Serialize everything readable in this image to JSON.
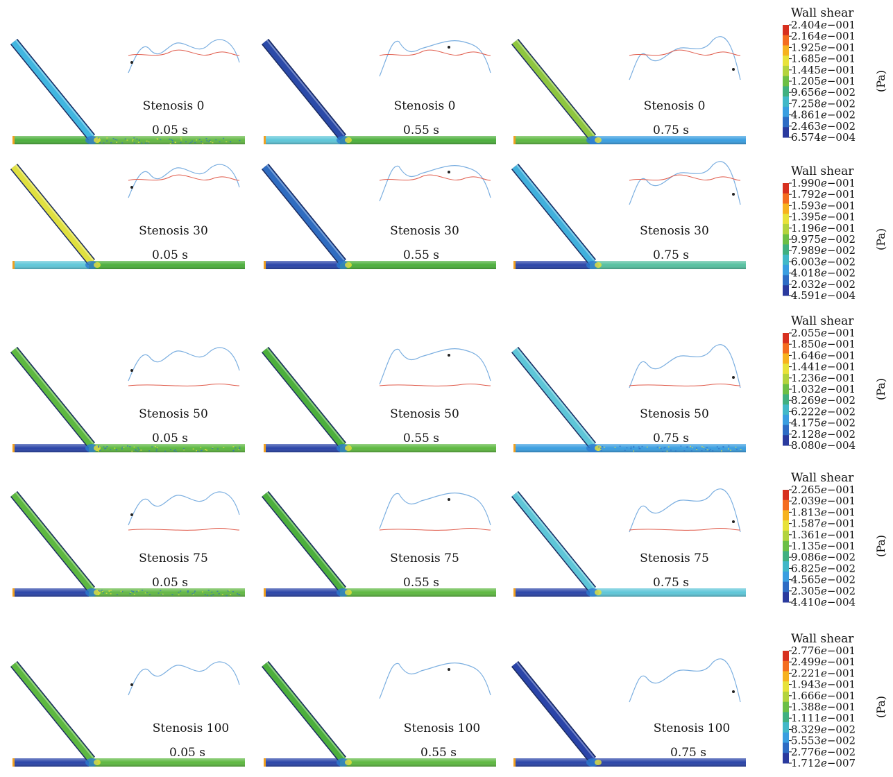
{
  "rows": [
    {
      "stenosis": "Stenosis 0",
      "colorbar": {
        "title": "Wall shear",
        "unit": "(Pa)",
        "ticks": [
          {
            "m": "2.404",
            "x": "−001"
          },
          {
            "m": "2.164",
            "x": "−001"
          },
          {
            "m": "1.925",
            "x": "−001"
          },
          {
            "m": "1.685",
            "x": "−001"
          },
          {
            "m": "1.445",
            "x": "−001"
          },
          {
            "m": "1.205",
            "x": "−001"
          },
          {
            "m": "9.656",
            "x": "−002"
          },
          {
            "m": "7.258",
            "x": "−002"
          },
          {
            "m": "4.861",
            "x": "−002"
          },
          {
            "m": "2.463",
            "x": "−002"
          },
          {
            "m": "6.574",
            "x": "−004"
          }
        ]
      },
      "panels": [
        {
          "time": "0.05 s",
          "branch": "#41b6e0",
          "left": "#4caf3c",
          "right": "#63b845",
          "speckle": true
        },
        {
          "time": "0.55 s",
          "branch": "#2b4aa8",
          "left": "#5ec6d8",
          "right": "#4caf3c",
          "speckle": false
        },
        {
          "time": "0.75 s",
          "branch": "#8ec63f",
          "left": "#5db840",
          "right": "#3a9ee0",
          "speckle": false
        }
      ]
    },
    {
      "stenosis": "Stenosis 30",
      "colorbar": {
        "title": "Wall shear",
        "unit": "(Pa)",
        "ticks": [
          {
            "m": "1.990",
            "x": "−001"
          },
          {
            "m": "1.792",
            "x": "−001"
          },
          {
            "m": "1.593",
            "x": "−001"
          },
          {
            "m": "1.395",
            "x": "−001"
          },
          {
            "m": "1.196",
            "x": "−001"
          },
          {
            "m": "9.975",
            "x": "−002"
          },
          {
            "m": "7.989",
            "x": "−002"
          },
          {
            "m": "6.003",
            "x": "−002"
          },
          {
            "m": "4.018",
            "x": "−002"
          },
          {
            "m": "2.032",
            "x": "−002"
          },
          {
            "m": "4.591",
            "x": "−004"
          }
        ]
      },
      "panels": [
        {
          "time": "0.05 s",
          "branch": "#e0e040",
          "left": "#5ec6d8",
          "right": "#4caf3c",
          "speckle": false
        },
        {
          "time": "0.55 s",
          "branch": "#2f6cc0",
          "left": "#2a44a8",
          "right": "#4caf3c",
          "speckle": false
        },
        {
          "time": "0.75 s",
          "branch": "#41b0dc",
          "left": "#2a44a8",
          "right": "#55c0a0",
          "speckle": false
        }
      ]
    },
    {
      "stenosis": "Stenosis 50",
      "colorbar": {
        "title": "Wall shear",
        "unit": "(Pa)",
        "ticks": [
          {
            "m": "2.055",
            "x": "−001"
          },
          {
            "m": "1.850",
            "x": "−001"
          },
          {
            "m": "1.646",
            "x": "−001"
          },
          {
            "m": "1.441",
            "x": "−001"
          },
          {
            "m": "1.236",
            "x": "−001"
          },
          {
            "m": "1.032",
            "x": "−001"
          },
          {
            "m": "8.269",
            "x": "−002"
          },
          {
            "m": "6.222",
            "x": "−002"
          },
          {
            "m": "4.175",
            "x": "−002"
          },
          {
            "m": "2.128",
            "x": "−002"
          },
          {
            "m": "8.080",
            "x": "−004"
          }
        ]
      },
      "panels": [
        {
          "time": "0.05 s",
          "branch": "#5db840",
          "left": "#2a44a8",
          "right": "#5db840",
          "speckle": true
        },
        {
          "time": "0.55 s",
          "branch": "#4caf3c",
          "left": "#2a44a8",
          "right": "#5db840",
          "speckle": false
        },
        {
          "time": "0.75 s",
          "branch": "#5ec6d8",
          "left": "#3a9ee0",
          "right": "#3a9ee0",
          "speckle": true
        }
      ]
    },
    {
      "stenosis": "Stenosis 75",
      "colorbar": {
        "title": "Wall shear",
        "unit": "(Pa)",
        "ticks": [
          {
            "m": "2.265",
            "x": "−001"
          },
          {
            "m": "2.039",
            "x": "−001"
          },
          {
            "m": "1.813",
            "x": "−001"
          },
          {
            "m": "1.587",
            "x": "−001"
          },
          {
            "m": "1.361",
            "x": "−001"
          },
          {
            "m": "1.135",
            "x": "−001"
          },
          {
            "m": "9.086",
            "x": "−002"
          },
          {
            "m": "6.825",
            "x": "−002"
          },
          {
            "m": "4.565",
            "x": "−002"
          },
          {
            "m": "2.305",
            "x": "−002"
          },
          {
            "m": "4.410",
            "x": "−004"
          }
        ]
      },
      "panels": [
        {
          "time": "0.05 s",
          "branch": "#5db840",
          "left": "#2a44a8",
          "right": "#63b845",
          "speckle": true
        },
        {
          "time": "0.55 s",
          "branch": "#4caf3c",
          "left": "#2a44a8",
          "right": "#5db840",
          "speckle": false
        },
        {
          "time": "0.75 s",
          "branch": "#5ec6d8",
          "left": "#2a44a8",
          "right": "#5ec6d8",
          "speckle": false
        }
      ]
    },
    {
      "stenosis": "Stenosis 100",
      "colorbar": {
        "title": "Wall shear",
        "unit": "(Pa)",
        "ticks": [
          {
            "m": "2.776",
            "x": "−001"
          },
          {
            "m": "2.499",
            "x": "−001"
          },
          {
            "m": "2.221",
            "x": "−001"
          },
          {
            "m": "1.943",
            "x": "−001"
          },
          {
            "m": "1.666",
            "x": "−001"
          },
          {
            "m": "1.388",
            "x": "−001"
          },
          {
            "m": "1.111",
            "x": "−001"
          },
          {
            "m": "8.329",
            "x": "−002"
          },
          {
            "m": "5.553",
            "x": "−002"
          },
          {
            "m": "2.776",
            "x": "−002"
          },
          {
            "m": "1.712",
            "x": "−007"
          }
        ]
      },
      "panels": [
        {
          "time": "0.05 s",
          "branch": "#5db840",
          "left": "#2a44a8",
          "right": "#5db840",
          "speckle": false
        },
        {
          "time": "0.55 s",
          "branch": "#4caf3c",
          "left": "#2a44a8",
          "right": "#5db840",
          "speckle": false
        },
        {
          "time": "0.75 s",
          "branch": "#2a44a8",
          "left": "#2a44a8",
          "right": "#2a44a8",
          "speckle": false
        }
      ]
    }
  ],
  "colormap": [
    "#d7301f",
    "#f46d1f",
    "#f6b21f",
    "#e8e23a",
    "#b3d33d",
    "#6cbf45",
    "#40b080",
    "#42b8c8",
    "#3a9ee0",
    "#2e6cc4",
    "#2a3a9e"
  ]
}
